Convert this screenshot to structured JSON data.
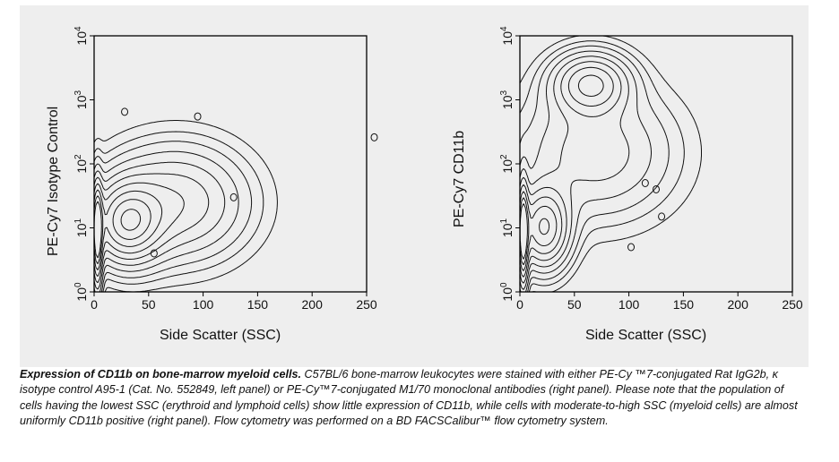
{
  "chart_data": [
    {
      "type": "contour",
      "xlabel": "Side Scatter (SSC)",
      "ylabel": "PE-Cy7 Isotype Control",
      "xlim": [
        0,
        250
      ],
      "xticks": [
        "0",
        "50",
        "100",
        "150",
        "200",
        "250"
      ],
      "yscale": "log",
      "ylim": [
        1,
        10000
      ],
      "yticks": [
        {
          "base": "10",
          "exp": "0"
        },
        {
          "base": "10",
          "exp": "1"
        },
        {
          "base": "10",
          "exp": "2"
        },
        {
          "base": "10",
          "exp": "3"
        },
        {
          "base": "10",
          "exp": "4"
        }
      ],
      "grid": false,
      "populations": [
        {
          "x": 3,
          "y": 8,
          "sx": 3,
          "sy": 0.5,
          "w": 1.0
        },
        {
          "x": 30,
          "y": 12,
          "sx": 20,
          "sy": 0.4,
          "w": 0.75
        },
        {
          "x": 75,
          "y": 25,
          "sx": 40,
          "sy": 0.55,
          "w": 0.45
        }
      ],
      "outliers": [
        [
          28,
          650
        ],
        [
          95,
          550
        ],
        [
          257,
          260
        ],
        [
          128,
          30
        ],
        [
          55,
          4
        ]
      ]
    },
    {
      "type": "contour",
      "xlabel": "Side Scatter (SSC)",
      "ylabel": "PE-Cy7 CD11b",
      "xlim": [
        0,
        250
      ],
      "xticks": [
        "0",
        "50",
        "100",
        "150",
        "200",
        "250"
      ],
      "yscale": "log",
      "ylim": [
        1,
        10000
      ],
      "yticks": [
        {
          "base": "10",
          "exp": "0"
        },
        {
          "base": "10",
          "exp": "1"
        },
        {
          "base": "10",
          "exp": "2"
        },
        {
          "base": "10",
          "exp": "3"
        },
        {
          "base": "10",
          "exp": "4"
        }
      ],
      "grid": false,
      "populations": [
        {
          "x": 3,
          "y": 8,
          "sx": 3,
          "sy": 0.5,
          "w": 1.0
        },
        {
          "x": 22,
          "y": 10,
          "sx": 15,
          "sy": 0.4,
          "w": 0.75
        },
        {
          "x": 65,
          "y": 1800,
          "sx": 22,
          "sy": 0.3,
          "w": 0.6
        },
        {
          "x": 70,
          "y": 150,
          "sx": 45,
          "sy": 0.65,
          "w": 0.3
        }
      ],
      "outliers": [
        [
          125,
          40
        ],
        [
          130,
          15
        ],
        [
          102,
          5
        ],
        [
          115,
          50
        ]
      ]
    }
  ],
  "caption": {
    "title": "Expression of CD11b on bone-marrow myeloid cells.",
    "body": " C57BL/6 bone-marrow leukocytes were stained with either PE-Cy\n™7-conjugated Rat IgG2b, κ isotype control A95-1 (Cat. No. 552849, left panel) or PE-Cy™7-conjugated M1/70 monoclonal\nantibodies (right panel). Please note that the population of cells having the lowest SSC (erythroid and lymphoid cells) show little\nexpression of CD11b, while cells with moderate-to-high SSC (myeloid cells) are almost uniformly CD11b positive (right panel).\nFlow cytometry was performed on a BD FACSCalibur™ flow cytometry system."
  }
}
